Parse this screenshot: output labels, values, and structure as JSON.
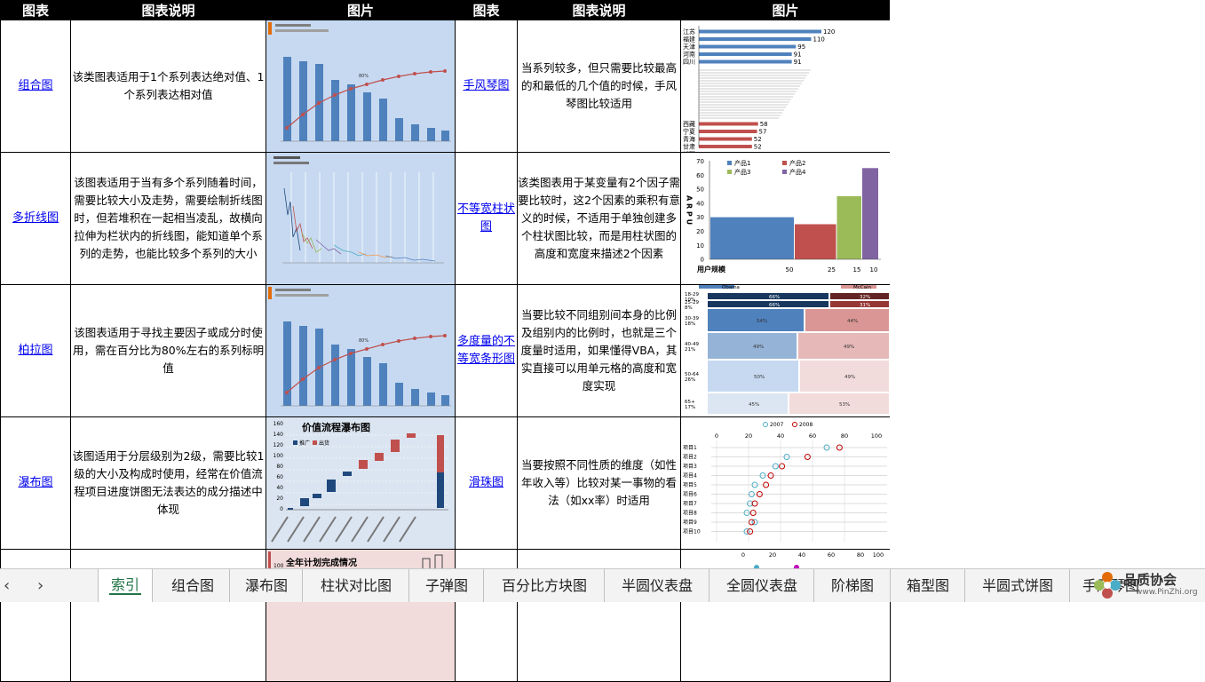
{
  "table": {
    "headers": [
      "图表",
      "图表说明",
      "图片",
      "图表",
      "图表说明",
      "图片"
    ],
    "rows": [
      {
        "left_name": "组合图",
        "left_desc": "该类图表适用于1个系列表达绝对值、1个系列表达相对值",
        "right_name": "手风琴图",
        "right_desc": "当系列较多，但只需要比较最高的和最低的几个值的时候，手风琴图比较适用"
      },
      {
        "left_name": "多折线图",
        "left_desc": "该图表适用于当有多个系列随着时间，需要比较大小及走势，需要绘制折线图时，但若堆积在一起相当凌乱，故横向拉伸为栏状内的折线图，能知道单个系列的走势，也能比较多个系列的大小",
        "right_name": "不等宽柱状图",
        "right_desc": "该类图表用于某变量有2个因子需要比较时，这2个因素的乘积有意义的时候，不适用于单独创建多个柱状图比较，而是用柱状图的高度和宽度来描述2个因素"
      },
      {
        "left_name": "柏拉图",
        "left_desc": "该图表适用于寻找主要因子或成分时使用，需在百分比为80%左右的系列标明值",
        "right_name": "多度量的不等宽条形图",
        "right_desc": "当要比较不同组别间本身的比例及组别内的比例时，也就是三个度量时适用，如果懂得VBA，其实直接可以用单元格的高度和宽度实现"
      },
      {
        "left_name": "瀑布图",
        "left_desc": "该图适用于分层级别为2级，需要比较1级的大小及构成时使用，经常在价值流程项目进度饼图无法表达的成分描述中体现",
        "right_name": "滑珠图",
        "right_desc": "当要按照不同性质的维度（如性年收入等）比较对某一事物的看法（如xx率）时适用"
      }
    ]
  },
  "thumbs": {
    "combo_label": "80%",
    "accordion_top": [
      {
        "name": "江苏",
        "value": 120
      },
      {
        "name": "福建",
        "value": 110
      },
      {
        "name": "天津",
        "value": 95
      },
      {
        "name": "河南",
        "value": 91
      },
      {
        "name": "四川",
        "value": 91
      }
    ],
    "accordion_bottom": [
      {
        "name": "西藏",
        "value": 58
      },
      {
        "name": "宁夏",
        "value": 57
      },
      {
        "name": "青海",
        "value": 52
      },
      {
        "name": "甘肃",
        "value": 52
      },
      {
        "name": "新疆",
        "value": 51
      }
    ],
    "unequal": {
      "legend": [
        "产品1",
        "产品2",
        "产品3",
        "产品4"
      ],
      "y_ticks": [
        "70",
        "60",
        "50",
        "40",
        "30",
        "20",
        "10",
        "0"
      ],
      "y_label": "A R P U",
      "x_label": "用户规模",
      "x_ticks": [
        "50",
        "25",
        "15",
        "10"
      ],
      "colors": [
        "#4f81bd",
        "#c0504d",
        "#9bbb59",
        "#8064a2"
      ]
    },
    "multi": {
      "legend": [
        "Obama",
        "McCain"
      ],
      "groups": [
        {
          "label": "18-29",
          "pct": "10%",
          "a": "66%",
          "b": "32%"
        },
        {
          "label": "25-29",
          "pct": "8%",
          "a": "66%",
          "b": "31%"
        },
        {
          "label": "30-39",
          "pct": "18%",
          "a": "54%",
          "b": "44%"
        },
        {
          "label": "40-49",
          "pct": "21%",
          "a": "49%",
          "b": "49%"
        },
        {
          "label": "50-64",
          "pct": "26%",
          "a": "50%",
          "b": "49%"
        },
        {
          "label": "65+",
          "pct": "17%",
          "a": "45%",
          "b": "53%"
        }
      ]
    },
    "waterfall": {
      "title": "价值流程瀑布图",
      "legend": [
        "推广",
        "出货"
      ],
      "y_ticks": [
        "160",
        "140",
        "120",
        "100",
        "80",
        "60",
        "40",
        "20",
        "0"
      ]
    },
    "pending": {
      "title": "全年计划完成情况"
    },
    "dumbbell": {
      "legend": [
        "2007",
        "2008"
      ],
      "ticks": [
        "0",
        "20",
        "40",
        "60",
        "80",
        "100"
      ],
      "items": [
        "项目1",
        "项目2",
        "项目3",
        "项目4",
        "项目5",
        "项目6",
        "项目7",
        "项目8",
        "项目9",
        "项目10"
      ]
    }
  },
  "sheet_tabs": [
    "索引",
    "组合图",
    "瀑布图",
    "柱状对比图",
    "子弹图",
    "百分比方块图",
    "半圆仪表盘",
    "全圆仪表盘",
    "阶梯图",
    "箱型图",
    "半圆式饼图",
    "手风琴图"
  ],
  "active_tab": "索引",
  "watermark": {
    "name": "品质协会",
    "url": "www.PinZhi.org"
  }
}
